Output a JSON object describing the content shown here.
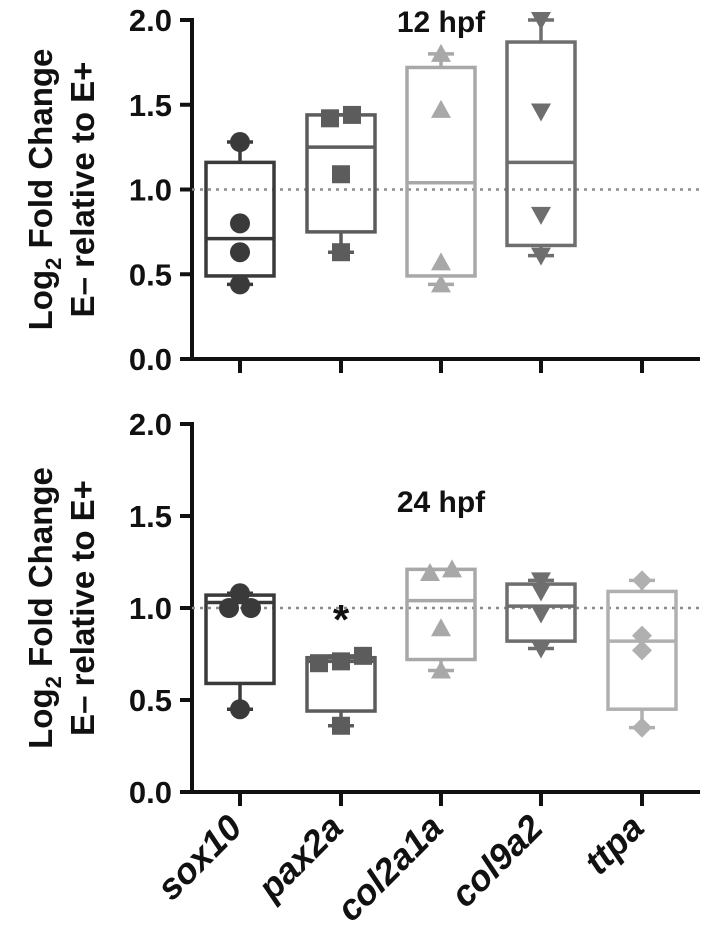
{
  "yaxis_title": {
    "line1_prefix": "Log",
    "line1_sub": "2",
    "line1_suffix": " Fold Change",
    "line2": "E– relative to E+"
  },
  "annotations": {
    "significance": "*"
  },
  "colors": {
    "sox10": "#3a3a3a",
    "pax2a": "#5c5c5c",
    "col2a1a": "#a8a8a8",
    "col9a2": "#6e6e6e",
    "ttpa": "#b0b0b0",
    "reference": "#8c8c8c"
  },
  "chart_data": [
    {
      "type": "box",
      "title": "12 hpf",
      "ylabel": "Log2 Fold Change E– relative to E+",
      "ylim": [
        0,
        2
      ],
      "yticks": [
        "0.0",
        "0.5",
        "1.0",
        "1.5",
        "2.0"
      ],
      "categories": [
        "sox10",
        "pax2a",
        "col2a1a",
        "col9a2",
        "ttpa"
      ],
      "reference_line": 1.0,
      "grid": false,
      "series": [
        {
          "name": "sox10",
          "marker": "circle",
          "points": [
            0.44,
            0.63,
            0.8,
            1.28
          ],
          "whisker": [
            0.44,
            1.28
          ],
          "box": [
            0.49,
            1.16
          ],
          "median": 0.71
        },
        {
          "name": "pax2a",
          "marker": "square",
          "points": [
            0.63,
            1.09,
            1.42,
            1.44
          ],
          "whisker": [
            0.63,
            1.44
          ],
          "box": [
            0.75,
            1.44
          ],
          "median": 1.25
        },
        {
          "name": "col2a1a",
          "marker": "triangle-up",
          "points": [
            0.44,
            0.57,
            1.47,
            1.8
          ],
          "whisker": [
            0.44,
            1.8
          ],
          "box": [
            0.49,
            1.72
          ],
          "median": 1.04
        },
        {
          "name": "col9a2",
          "marker": "triangle-down",
          "points": [
            0.61,
            0.85,
            1.46,
            2.0
          ],
          "whisker": [
            0.61,
            2.0
          ],
          "box": [
            0.67,
            1.87
          ],
          "median": 1.16
        },
        {
          "name": "ttpa",
          "marker": "diamond",
          "points": [],
          "whisker": null,
          "box": null,
          "median": null
        }
      ]
    },
    {
      "type": "box",
      "title": "24 hpf",
      "ylabel": "Log2 Fold Change E– relative to E+",
      "ylim": [
        0,
        2
      ],
      "yticks": [
        "0.0",
        "0.5",
        "1.0",
        "1.5",
        "2.0"
      ],
      "categories": [
        "sox10",
        "pax2a",
        "col2a1a",
        "col9a2",
        "ttpa"
      ],
      "reference_line": 1.0,
      "grid": false,
      "series": [
        {
          "name": "sox10",
          "marker": "circle",
          "points": [
            0.45,
            1.0,
            1.0,
            1.08
          ],
          "whisker": [
            0.45,
            1.08
          ],
          "box": [
            0.59,
            1.07
          ],
          "median": 1.03
        },
        {
          "name": "pax2a",
          "marker": "square",
          "points": [
            0.36,
            0.7,
            0.71,
            0.74
          ],
          "whisker": [
            0.36,
            0.74
          ],
          "box": [
            0.44,
            0.73
          ],
          "median": 0.71,
          "significance": "*"
        },
        {
          "name": "col2a1a",
          "marker": "triangle-up",
          "points": [
            0.66,
            0.89,
            1.19,
            1.21
          ],
          "whisker": [
            0.66,
            1.21
          ],
          "box": [
            0.72,
            1.21
          ],
          "median": 1.04
        },
        {
          "name": "col9a2",
          "marker": "triangle-down",
          "points": [
            0.78,
            0.97,
            1.09,
            1.15
          ],
          "whisker": [
            0.78,
            1.15
          ],
          "box": [
            0.82,
            1.13
          ],
          "median": 1.01
        },
        {
          "name": "ttpa",
          "marker": "diamond",
          "points": [
            0.35,
            0.77,
            0.85,
            1.15
          ],
          "whisker": [
            0.35,
            1.15
          ],
          "box": [
            0.45,
            1.09
          ],
          "median": 0.82
        }
      ]
    }
  ]
}
